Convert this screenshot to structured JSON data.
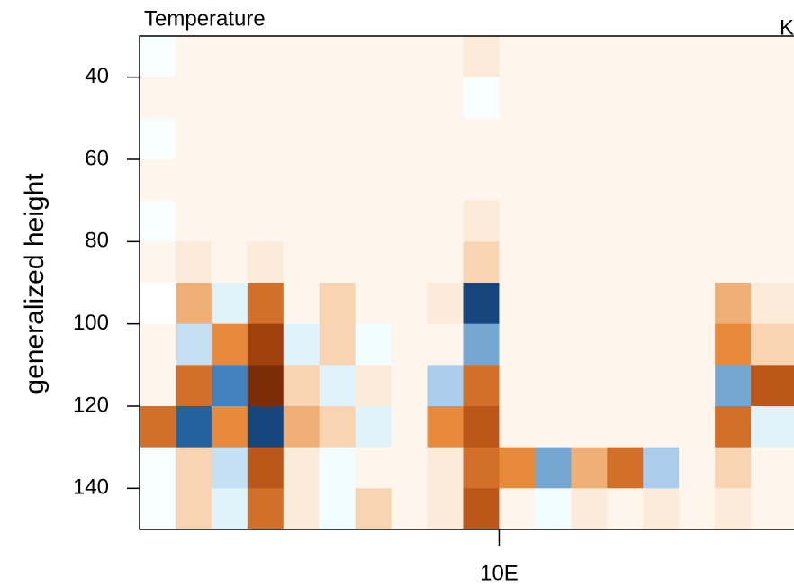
{
  "chart_data": {
    "type": "heatmap",
    "title": "Temperature",
    "units": "K",
    "ylabel": "generalized height",
    "xlim": [
      0,
      18.2
    ],
    "xticks": [
      {
        "value": 10,
        "label": "10E"
      }
    ],
    "ylim": [
      30,
      150
    ],
    "y_inverted": true,
    "yticks": [
      40,
      60,
      80,
      100,
      120,
      140
    ],
    "xbins": [
      0,
      1,
      2,
      3,
      4,
      5,
      6,
      7,
      8,
      9,
      10,
      11,
      12,
      13,
      14,
      15,
      16,
      17,
      18.2
    ],
    "ybins": [
      30,
      40,
      50,
      60,
      70,
      80,
      90,
      100,
      110,
      120,
      130,
      140,
      150
    ],
    "zlim": [
      -1,
      1
    ],
    "colors": [
      "#0b2a5c",
      "#2a6fb0",
      "#a9cdea",
      "#eefcff",
      "#ffffff",
      "#fde6cf",
      "#e88a3c",
      "#b04a10",
      "#5a1a02"
    ],
    "z": [
      [
        -0.1,
        0.1,
        0.1,
        0.1,
        0.1,
        0.1,
        0.1,
        0.1,
        0.1,
        0.2,
        0.1,
        0.1,
        0.1,
        0.1,
        0.1,
        0.1,
        0.1,
        0.1
      ],
      [
        0.1,
        0.1,
        0.1,
        0.1,
        0.1,
        0.1,
        0.1,
        0.1,
        0.1,
        -0.1,
        0.1,
        0.1,
        0.1,
        0.1,
        0.1,
        0.1,
        0.1,
        0.1
      ],
      [
        -0.1,
        0.1,
        0.1,
        0.1,
        0.1,
        0.1,
        0.1,
        0.1,
        0.1,
        0.1,
        0.1,
        0.1,
        0.1,
        0.1,
        0.1,
        0.1,
        0.1,
        0.1
      ],
      [
        0.1,
        0.1,
        0.1,
        0.1,
        0.1,
        0.1,
        0.1,
        0.1,
        0.1,
        0.1,
        0.1,
        0.1,
        0.1,
        0.1,
        0.1,
        0.1,
        0.1,
        0.1
      ],
      [
        -0.1,
        0.1,
        0.1,
        0.1,
        0.1,
        0.1,
        0.1,
        0.1,
        0.1,
        0.2,
        0.1,
        0.1,
        0.1,
        0.1,
        0.1,
        0.1,
        0.1,
        0.1
      ],
      [
        0.1,
        0.2,
        0.1,
        0.2,
        0.1,
        0.1,
        0.1,
        0.1,
        0.1,
        0.3,
        0.1,
        0.1,
        0.1,
        0.1,
        0.1,
        0.1,
        0.1,
        0.1
      ],
      [
        0,
        0.4,
        -0.3,
        0.6,
        0.1,
        0.3,
        0.1,
        0.1,
        0.2,
        -0.9,
        0.1,
        0.1,
        0.1,
        0.1,
        0.1,
        0.1,
        0.4,
        0.2
      ],
      [
        0.1,
        -0.4,
        0.5,
        0.8,
        -0.3,
        0.3,
        -0.2,
        0.1,
        0.1,
        -0.6,
        0.1,
        0.1,
        0.1,
        0.1,
        0.1,
        0.1,
        0.5,
        0.3
      ],
      [
        0.1,
        0.6,
        -0.7,
        0.9,
        0.3,
        -0.3,
        0.2,
        0.1,
        -0.5,
        0.6,
        0.1,
        0.1,
        0.1,
        0.1,
        0.1,
        0.1,
        -0.6,
        0.7
      ],
      [
        0.6,
        -0.8,
        0.5,
        -0.9,
        0.4,
        0.3,
        -0.3,
        0.1,
        0.5,
        0.7,
        0.1,
        0.1,
        0.1,
        0.1,
        0.1,
        0.1,
        0.6,
        -0.3
      ],
      [
        -0.1,
        0.3,
        -0.4,
        0.7,
        0.2,
        -0.2,
        0.1,
        0.1,
        0.2,
        0.6,
        0.5,
        -0.6,
        0.4,
        0.6,
        -0.5,
        0.1,
        0.3,
        0.1
      ],
      [
        -0.1,
        0.3,
        -0.3,
        0.6,
        0.2,
        -0.2,
        0.3,
        0.1,
        0.2,
        0.7,
        0.1,
        -0.2,
        0.2,
        0.1,
        0.2,
        0.1,
        0.2,
        0.1
      ]
    ]
  }
}
